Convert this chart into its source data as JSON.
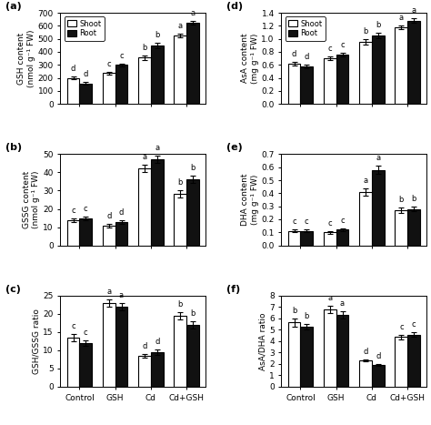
{
  "categories": [
    "Control",
    "GSH",
    "Cd",
    "Cd+GSH"
  ],
  "subplot_labels": [
    "(a)",
    "(b)",
    "(c)",
    "(d)",
    "(e)",
    "(f)"
  ],
  "shoot_color": "#ffffff",
  "root_color": "#111111",
  "edge_color": "#000000",
  "a_shoot": [
    200,
    237,
    355,
    525
  ],
  "a_root": [
    158,
    300,
    448,
    625
  ],
  "a_shoot_err": [
    10,
    10,
    15,
    15
  ],
  "a_root_err": [
    8,
    10,
    20,
    15
  ],
  "a_ylabel": "GSH content\n(nmol g⁻¹ FW)",
  "a_ylim": [
    0,
    700
  ],
  "a_yticks": [
    0,
    100,
    200,
    300,
    400,
    500,
    600,
    700
  ],
  "a_shoot_letters": [
    "d",
    "c",
    "b",
    "a"
  ],
  "a_root_letters": [
    "d",
    "c",
    "b",
    "a"
  ],
  "b_shoot": [
    14,
    11,
    42,
    28
  ],
  "b_root": [
    15,
    13,
    47,
    36
  ],
  "b_shoot_err": [
    1,
    1,
    2,
    2
  ],
  "b_root_err": [
    1,
    1,
    2,
    2
  ],
  "b_ylabel": "GSSG content\n(nmol g⁻¹ FW)",
  "b_ylim": [
    0,
    50
  ],
  "b_yticks": [
    0,
    10,
    20,
    30,
    40,
    50
  ],
  "b_shoot_letters": [
    "c",
    "d",
    "a",
    "b"
  ],
  "b_root_letters": [
    "c",
    "d",
    "a",
    "b"
  ],
  "c_shoot": [
    13.5,
    23,
    8.5,
    19.5
  ],
  "c_root": [
    12,
    22,
    9.5,
    17
  ],
  "c_shoot_err": [
    1,
    1,
    0.5,
    1
  ],
  "c_root_err": [
    0.8,
    1,
    0.8,
    1
  ],
  "c_ylabel": "GSH/GSSG ratio",
  "c_ylim": [
    0,
    25
  ],
  "c_yticks": [
    0,
    5,
    10,
    15,
    20,
    25
  ],
  "c_shoot_letters": [
    "c",
    "a",
    "d",
    "b"
  ],
  "c_root_letters": [
    "c",
    "a",
    "d",
    "b"
  ],
  "d_shoot": [
    0.62,
    0.7,
    0.95,
    1.18
  ],
  "d_root": [
    0.58,
    0.76,
    1.05,
    1.28
  ],
  "d_shoot_err": [
    0.03,
    0.03,
    0.04,
    0.03
  ],
  "d_root_err": [
    0.03,
    0.03,
    0.04,
    0.03
  ],
  "d_ylabel": "AsA content\n(mg g⁻¹ FW)",
  "d_ylim": [
    0,
    1.4
  ],
  "d_yticks": [
    0.0,
    0.2,
    0.4,
    0.6,
    0.8,
    1.0,
    1.2,
    1.4
  ],
  "d_shoot_letters": [
    "d",
    "c",
    "b",
    "a"
  ],
  "d_root_letters": [
    "d",
    "c",
    "b",
    "a"
  ],
  "e_shoot": [
    0.11,
    0.1,
    0.41,
    0.27
  ],
  "e_root": [
    0.11,
    0.12,
    0.58,
    0.28
  ],
  "e_shoot_err": [
    0.01,
    0.01,
    0.03,
    0.02
  ],
  "e_root_err": [
    0.01,
    0.01,
    0.03,
    0.02
  ],
  "e_ylabel": "DHA content\n(mg g⁻¹ FW)",
  "e_ylim": [
    0,
    0.7
  ],
  "e_yticks": [
    0.0,
    0.1,
    0.2,
    0.3,
    0.4,
    0.5,
    0.6,
    0.7
  ],
  "e_shoot_letters": [
    "c",
    "c",
    "a",
    "b"
  ],
  "e_root_letters": [
    "c",
    "c",
    "a",
    "b"
  ],
  "f_shoot": [
    5.65,
    6.8,
    2.3,
    4.35
  ],
  "f_root": [
    5.25,
    6.3,
    1.9,
    4.55
  ],
  "f_shoot_err": [
    0.35,
    0.3,
    0.1,
    0.2
  ],
  "f_root_err": [
    0.25,
    0.3,
    0.1,
    0.2
  ],
  "f_ylabel": "AsA/DHA ratio",
  "f_ylim": [
    0,
    8
  ],
  "f_yticks": [
    0,
    1,
    2,
    3,
    4,
    5,
    6,
    7,
    8
  ],
  "f_shoot_letters": [
    "b",
    "a",
    "d",
    "c"
  ],
  "f_root_letters": [
    "b",
    "a",
    "d",
    "c"
  ]
}
